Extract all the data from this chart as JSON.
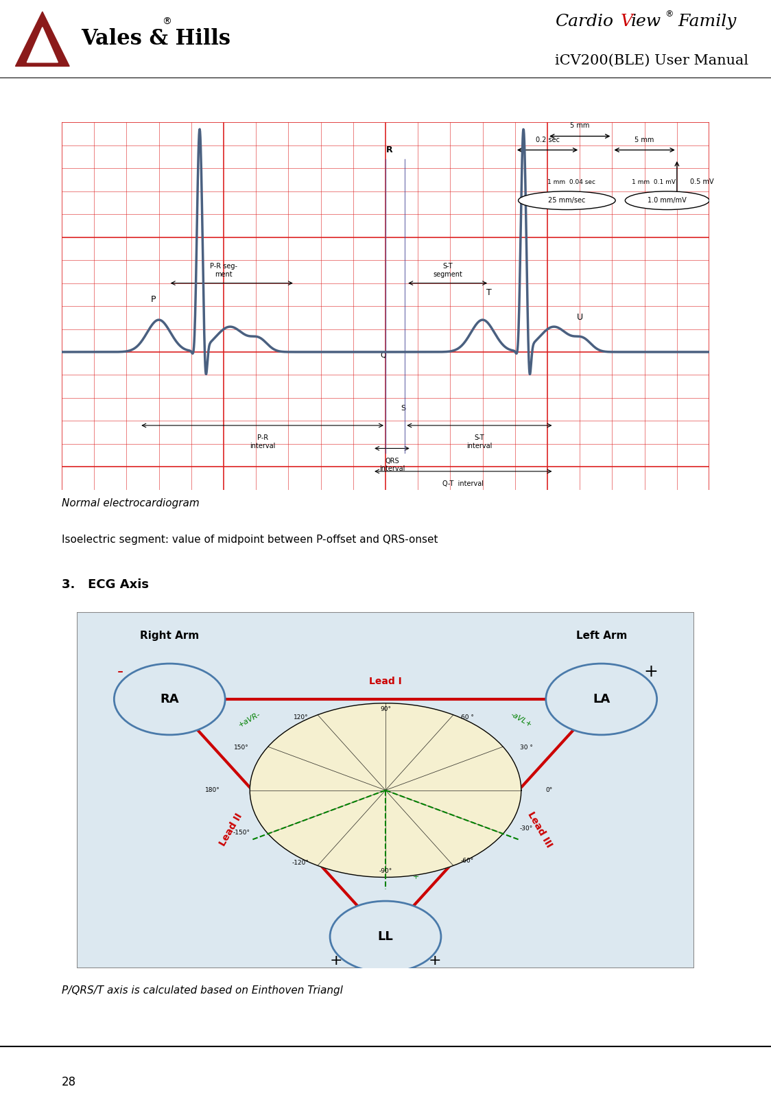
{
  "page_width": 11.24,
  "page_height": 16.22,
  "bg_color": "#ffffff",
  "header_line_color": "#000000",
  "footer_line_color": "#000000",
  "logo_text": "Vales & Hills",
  "logo_color": "#8B1A1A",
  "title_line1": "CardioView",
  "title_line1_color_cardio": "#000000",
  "title_line1_color_view": "#cc0000",
  "title_reg": "®",
  "title_line1_suffix": " Family",
  "title_line2": "iCV200(BLE) User Manual",
  "section_label": "Normal electrocardiogram",
  "isoelectric_text": "Isoelectric segment: value of midpoint between P-offset and QRS-onset",
  "ecg_axis_heading": "3.   ECG Axis",
  "footer_text": "P/QRS/T axis is calculated based on Einthoven Triangl",
  "page_number": "28",
  "grid_color_major": "#cc0000",
  "grid_color_minor": "#ffaaaa",
  "ecg_bg": "#fff5f5",
  "triangle_bg": "#c8d8e8",
  "triangle_color": "#cc0000",
  "ra_color": "#c8d8e8",
  "la_color": "#c8d8e8",
  "ll_color": "#c8d8e8"
}
